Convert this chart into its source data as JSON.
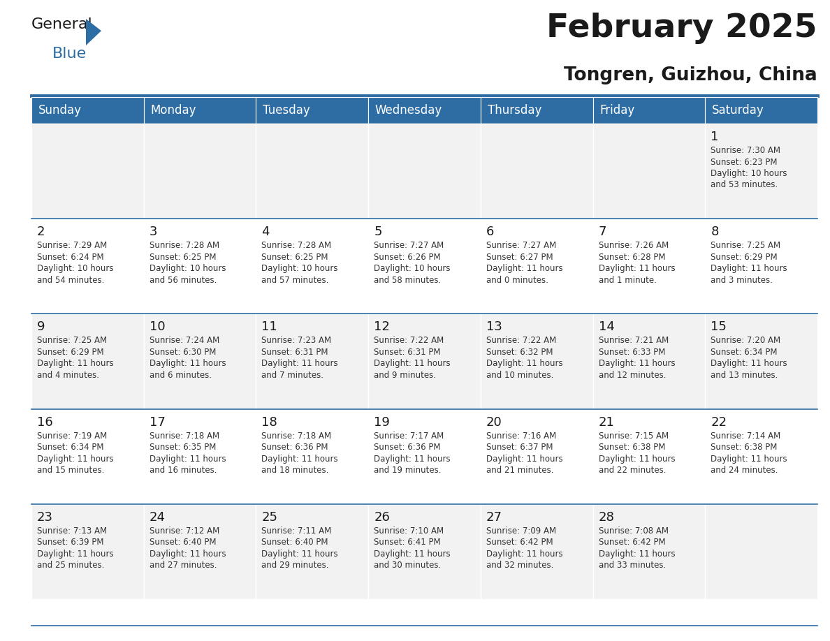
{
  "title": "February 2025",
  "subtitle": "Tongren, Guizhou, China",
  "days_of_week": [
    "Sunday",
    "Monday",
    "Tuesday",
    "Wednesday",
    "Thursday",
    "Friday",
    "Saturday"
  ],
  "header_bg": "#2E6DA4",
  "header_text": "#FFFFFF",
  "cell_bg": "#FFFFFF",
  "cell_border_color": "#2E6DA4",
  "title_color": "#1A1A1A",
  "subtitle_color": "#1A1A1A",
  "day_num_color": "#1A1A1A",
  "info_text_color": "#333333",
  "logo_general_color": "#1A1A1A",
  "logo_blue_color": "#2E6DA4",
  "separator_line_color": "#2E6DA4",
  "weeks": [
    [
      null,
      null,
      null,
      null,
      null,
      null,
      1
    ],
    [
      2,
      3,
      4,
      5,
      6,
      7,
      8
    ],
    [
      9,
      10,
      11,
      12,
      13,
      14,
      15
    ],
    [
      16,
      17,
      18,
      19,
      20,
      21,
      22
    ],
    [
      23,
      24,
      25,
      26,
      27,
      28,
      null
    ]
  ],
  "day_data": {
    "1": {
      "sunrise": "7:30 AM",
      "sunset": "6:23 PM",
      "daylight": "10 hours and 53 minutes."
    },
    "2": {
      "sunrise": "7:29 AM",
      "sunset": "6:24 PM",
      "daylight": "10 hours and 54 minutes."
    },
    "3": {
      "sunrise": "7:28 AM",
      "sunset": "6:25 PM",
      "daylight": "10 hours and 56 minutes."
    },
    "4": {
      "sunrise": "7:28 AM",
      "sunset": "6:25 PM",
      "daylight": "10 hours and 57 minutes."
    },
    "5": {
      "sunrise": "7:27 AM",
      "sunset": "6:26 PM",
      "daylight": "10 hours and 58 minutes."
    },
    "6": {
      "sunrise": "7:27 AM",
      "sunset": "6:27 PM",
      "daylight": "11 hours and 0 minutes."
    },
    "7": {
      "sunrise": "7:26 AM",
      "sunset": "6:28 PM",
      "daylight": "11 hours and 1 minute."
    },
    "8": {
      "sunrise": "7:25 AM",
      "sunset": "6:29 PM",
      "daylight": "11 hours and 3 minutes."
    },
    "9": {
      "sunrise": "7:25 AM",
      "sunset": "6:29 PM",
      "daylight": "11 hours and 4 minutes."
    },
    "10": {
      "sunrise": "7:24 AM",
      "sunset": "6:30 PM",
      "daylight": "11 hours and 6 minutes."
    },
    "11": {
      "sunrise": "7:23 AM",
      "sunset": "6:31 PM",
      "daylight": "11 hours and 7 minutes."
    },
    "12": {
      "sunrise": "7:22 AM",
      "sunset": "6:31 PM",
      "daylight": "11 hours and 9 minutes."
    },
    "13": {
      "sunrise": "7:22 AM",
      "sunset": "6:32 PM",
      "daylight": "11 hours and 10 minutes."
    },
    "14": {
      "sunrise": "7:21 AM",
      "sunset": "6:33 PM",
      "daylight": "11 hours and 12 minutes."
    },
    "15": {
      "sunrise": "7:20 AM",
      "sunset": "6:34 PM",
      "daylight": "11 hours and 13 minutes."
    },
    "16": {
      "sunrise": "7:19 AM",
      "sunset": "6:34 PM",
      "daylight": "11 hours and 15 minutes."
    },
    "17": {
      "sunrise": "7:18 AM",
      "sunset": "6:35 PM",
      "daylight": "11 hours and 16 minutes."
    },
    "18": {
      "sunrise": "7:18 AM",
      "sunset": "6:36 PM",
      "daylight": "11 hours and 18 minutes."
    },
    "19": {
      "sunrise": "7:17 AM",
      "sunset": "6:36 PM",
      "daylight": "11 hours and 19 minutes."
    },
    "20": {
      "sunrise": "7:16 AM",
      "sunset": "6:37 PM",
      "daylight": "11 hours and 21 minutes."
    },
    "21": {
      "sunrise": "7:15 AM",
      "sunset": "6:38 PM",
      "daylight": "11 hours and 22 minutes."
    },
    "22": {
      "sunrise": "7:14 AM",
      "sunset": "6:38 PM",
      "daylight": "11 hours and 24 minutes."
    },
    "23": {
      "sunrise": "7:13 AM",
      "sunset": "6:39 PM",
      "daylight": "11 hours and 25 minutes."
    },
    "24": {
      "sunrise": "7:12 AM",
      "sunset": "6:40 PM",
      "daylight": "11 hours and 27 minutes."
    },
    "25": {
      "sunrise": "7:11 AM",
      "sunset": "6:40 PM",
      "daylight": "11 hours and 29 minutes."
    },
    "26": {
      "sunrise": "7:10 AM",
      "sunset": "6:41 PM",
      "daylight": "11 hours and 30 minutes."
    },
    "27": {
      "sunrise": "7:09 AM",
      "sunset": "6:42 PM",
      "daylight": "11 hours and 32 minutes."
    },
    "28": {
      "sunrise": "7:08 AM",
      "sunset": "6:42 PM",
      "daylight": "11 hours and 33 minutes."
    }
  },
  "fig_width": 11.88,
  "fig_height": 9.18,
  "dpi": 100
}
